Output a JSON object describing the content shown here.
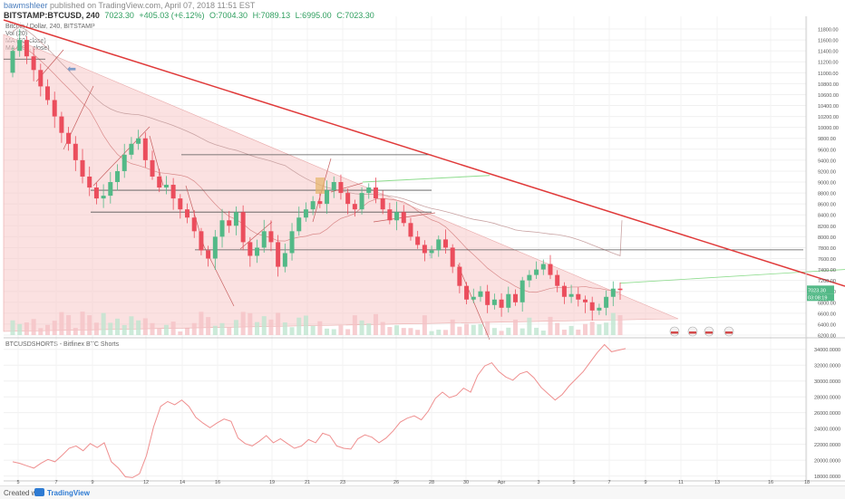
{
  "header": {
    "author": "bawmshleer",
    "published": "published on TradingView.com, April 07, 2018 11:51 EST",
    "symbol": "BITSTAMP:BTCUSD, 240",
    "price": "7023.30",
    "change": "+405.03 (+6.12%)",
    "open": "O:7004.30",
    "high": "H:7089.13",
    "low": "L:6995.00",
    "close": "C:7023.30"
  },
  "legend": {
    "name": "Bitcoin / Dollar, 240, BITSTAMP",
    "vol": "Vol (20)",
    "ma50": "MA (50, close)",
    "ma200": "MA (200, close)"
  },
  "indicator": {
    "title": "BTCUSDSHORTS - Bitfinex BTC Shorts"
  },
  "footer": {
    "created": "Created with",
    "brand": "TradingView"
  },
  "colors": {
    "up": "#53b987",
    "down": "#eb4d5c",
    "trend": "#e03a3a",
    "triangle_fill": "#f8c8c8",
    "green_line": "#8ddc8d",
    "shorts_line": "#ef8f8f"
  },
  "chart_data": [
    {
      "type": "candlestick",
      "x_ticks": [
        "5",
        "7",
        "9",
        "12",
        "14",
        "16",
        "19",
        "21",
        "23",
        "26",
        "28",
        "30",
        "Apr",
        "3",
        "5",
        "7",
        "9",
        "11",
        "13",
        "16",
        "18"
      ],
      "ylim": [
        6200,
        11900
      ],
      "y_ticks": [
        "11800.00",
        "11600.00",
        "11400.00",
        "11200.00",
        "11000.00",
        "10800.00",
        "10600.00",
        "10400.00",
        "10200.00",
        "10000.00",
        "9800.00",
        "9600.00",
        "9400.00",
        "9200.00",
        "9000.00",
        "8800.00",
        "8600.00",
        "8400.00",
        "8200.00",
        "8000.00",
        "7800.00",
        "7600.00",
        "7400.00",
        "7200.00",
        "7000.00",
        "6800.00",
        "6600.00",
        "6400.00",
        "6200.00"
      ],
      "last_price_label": "7023.30",
      "countdown_label": "03:08:19",
      "close": [
        11400,
        11600,
        11300,
        11050,
        10750,
        10500,
        10200,
        9900,
        9700,
        9400,
        9100,
        8900,
        8700,
        8750,
        9000,
        9200,
        9500,
        9700,
        9800,
        9400,
        9100,
        8900,
        8950,
        8700,
        8500,
        8350,
        8100,
        7750,
        7600,
        8000,
        8300,
        8200,
        8450,
        7900,
        7650,
        7800,
        8100,
        7900,
        7450,
        7700,
        8100,
        8350,
        8500,
        8650,
        8600,
        8850,
        9000,
        8800,
        8600,
        8500,
        8800,
        8900,
        8700,
        8500,
        8300,
        8450,
        8250,
        8000,
        7850,
        7700,
        7750,
        7950,
        7800,
        7450,
        7100,
        6850,
        6900,
        7000,
        6750,
        6850,
        6700,
        6950,
        6800,
        7200,
        7300,
        7400,
        7500,
        7300,
        7100,
        6900,
        6950,
        6850,
        6800,
        6650,
        6700,
        6900,
        7050,
        7023
      ],
      "series": [
        {
          "name": "MA (50, close)"
        },
        {
          "name": "MA (200, close)"
        },
        {
          "name": "Vol (20)"
        }
      ]
    },
    {
      "type": "line",
      "name": "BTCUSDSHORTS - Bitfinex BTC Shorts",
      "ylim": [
        17500,
        35000
      ],
      "y_ticks": [
        "34000.0000",
        "32000.0000",
        "30000.0000",
        "28000.0000",
        "26000.0000",
        "24000.0000",
        "22000.0000",
        "20000.0000",
        "18000.0000"
      ],
      "values": [
        19800,
        19600,
        19300,
        19000,
        19600,
        20100,
        19800,
        20600,
        21500,
        21800,
        21200,
        22100,
        21600,
        22200,
        19800,
        19000,
        17900,
        17800,
        18300,
        20600,
        24200,
        26800,
        27400,
        27000,
        27600,
        26800,
        25400,
        24700,
        24100,
        24700,
        25200,
        24900,
        22800,
        22100,
        21800,
        22400,
        23100,
        22200,
        22700,
        22100,
        21500,
        21800,
        22600,
        22200,
        23400,
        23100,
        21800,
        21500,
        21400,
        22700,
        23200,
        22900,
        22200,
        22800,
        23700,
        24800,
        25300,
        25600,
        25100,
        26200,
        27800,
        28600,
        27900,
        28200,
        29100,
        28600,
        30700,
        31900,
        32300,
        31200,
        30500,
        30100,
        30900,
        31200,
        30400,
        29200,
        28400,
        27600,
        28300,
        29400,
        30300,
        31200,
        32400,
        33600,
        34600,
        33700,
        33900,
        34100
      ]
    }
  ]
}
